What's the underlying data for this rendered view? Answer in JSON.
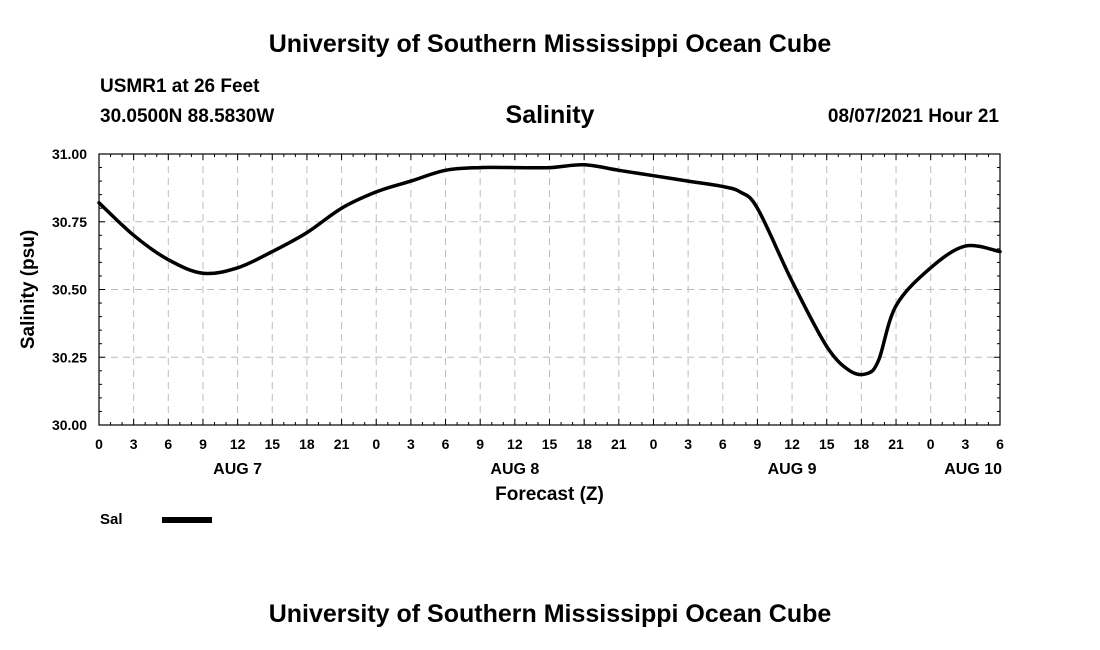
{
  "header": {
    "title": "University of Southern Mississippi Ocean Cube",
    "station": "USMR1 at 26 Feet",
    "coords": "30.0500N  88.5830W",
    "chart_title": "Salinity",
    "datetime": "08/07/2021 Hour 21"
  },
  "footer": {
    "title": "University of Southern Mississippi Ocean Cube"
  },
  "chart_data": {
    "type": "line",
    "title": "Salinity",
    "xlabel": "Forecast (Z)",
    "ylabel": "Salinity (psu)",
    "ylim": [
      30.0,
      31.0
    ],
    "xlim": [
      0,
      78
    ],
    "x_unit": "hours since AUG 7 00Z",
    "y_ticks": [
      "30.00",
      "30.25",
      "30.50",
      "30.75",
      "31.00"
    ],
    "x_tick_labels": [
      "0",
      "3",
      "6",
      "9",
      "12",
      "15",
      "18",
      "21",
      "0",
      "3",
      "6",
      "9",
      "12",
      "15",
      "18",
      "21",
      "0",
      "3",
      "6",
      "9",
      "12",
      "15",
      "18",
      "21",
      "0",
      "3",
      "6"
    ],
    "date_labels": [
      {
        "label": "AUG 7",
        "hour": 12
      },
      {
        "label": "AUG 8",
        "hour": 36
      },
      {
        "label": "AUG 9",
        "hour": 60
      },
      {
        "label": "AUG 10",
        "hour": 81
      }
    ],
    "grid": true,
    "series": [
      {
        "name": "Sal",
        "color": "#000000",
        "x": [
          0,
          3,
          6,
          9,
          12,
          15,
          18,
          21,
          24,
          27,
          30,
          33,
          36,
          39,
          42,
          45,
          48,
          51,
          54,
          55.5,
          57,
          60,
          63,
          65,
          66.5,
          67.5,
          69,
          72,
          75,
          78
        ],
        "y": [
          30.82,
          30.7,
          30.61,
          30.56,
          30.58,
          30.64,
          30.71,
          30.8,
          30.86,
          30.9,
          30.94,
          30.95,
          30.95,
          30.95,
          30.96,
          30.94,
          30.92,
          30.9,
          30.88,
          30.86,
          30.8,
          30.53,
          30.29,
          30.2,
          30.19,
          30.24,
          30.44,
          30.58,
          30.66,
          30.64
        ]
      }
    ],
    "legend": [
      {
        "label": "Sal"
      }
    ]
  }
}
